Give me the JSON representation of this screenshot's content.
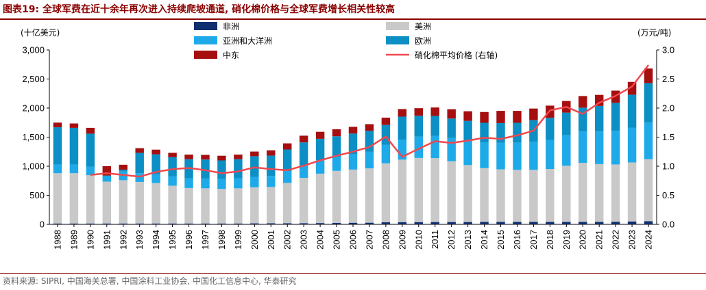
{
  "header": {
    "figure_label": "图表19:",
    "title_text": "全球军费在近十余年再次进入持续爬坡通道, 硝化棉价格与全球军费增长相关性较高"
  },
  "footer": {
    "source": "资料来源: SIPRI, 中国海关总署, 中国涂料工业协会, 中国化工信息中心, 华泰研究"
  },
  "colors": {
    "africa": "#0f2f6e",
    "americas": "#c9c9c9",
    "asia_oceania": "#1eaae8",
    "europe": "#0b8fc4",
    "middle_east": "#a50f0f",
    "price": "#f0484e",
    "accent": "#8b0000"
  },
  "chart_data": {
    "type": "bar",
    "stacked": true,
    "categories": [
      "1988",
      "1989",
      "1990",
      "1991",
      "1992",
      "1993",
      "1994",
      "1995",
      "1996",
      "1997",
      "1998",
      "1999",
      "2000",
      "2001",
      "2002",
      "2003",
      "2004",
      "2005",
      "2006",
      "2007",
      "2008",
      "2009",
      "2010",
      "2011",
      "2012",
      "2013",
      "2014",
      "2015",
      "2016",
      "2017",
      "2018",
      "2019",
      "2020",
      "2021",
      "2022",
      "2023",
      "2024"
    ],
    "ylabel": "(十亿美元)",
    "y2label": "(万元/吨)",
    "ylim": [
      0,
      3000
    ],
    "y2lim": [
      0,
      3.0
    ],
    "yticks": [
      "0",
      "500",
      "1,000",
      "1,500",
      "2,000",
      "2,500",
      "3,000"
    ],
    "y2ticks": [
      "0.0",
      "0.5",
      "1.0",
      "1.5",
      "2.0",
      "2.5",
      "3.0"
    ],
    "legend_position": "top",
    "series": [
      {
        "name": "非洲",
        "key": "africa",
        "values": [
          15,
          15,
          15,
          15,
          15,
          15,
          15,
          15,
          15,
          15,
          15,
          15,
          17,
          18,
          18,
          20,
          22,
          25,
          27,
          28,
          35,
          38,
          38,
          40,
          40,
          40,
          42,
          42,
          42,
          42,
          42,
          42,
          42,
          42,
          45,
          50,
          55
        ]
      },
      {
        "name": "美洲",
        "key": "americas",
        "values": [
          865,
          865,
          830,
          720,
          745,
          715,
          695,
          650,
          610,
          605,
          595,
          605,
          620,
          625,
          695,
          780,
          850,
          895,
          915,
          935,
          1015,
          1075,
          1105,
          1100,
          1045,
          980,
          925,
          905,
          895,
          895,
          910,
          965,
          1015,
          995,
          985,
          1015,
          1065
        ]
      },
      {
        "name": "亚洲和大洋洲",
        "key": "asia_oceania",
        "values": [
          150,
          150,
          145,
          95,
          150,
          150,
          150,
          160,
          165,
          165,
          170,
          170,
          180,
          190,
          200,
          210,
          230,
          245,
          265,
          285,
          320,
          345,
          365,
          380,
          400,
          420,
          440,
          455,
          470,
          485,
          500,
          525,
          540,
          560,
          580,
          595,
          630
        ]
      },
      {
        "name": "欧洲",
        "key": "europe",
        "values": [
          640,
          630,
          570,
          10,
          30,
          350,
          345,
          330,
          330,
          330,
          320,
          330,
          355,
          350,
          375,
          400,
          370,
          350,
          355,
          360,
          340,
          395,
          360,
          345,
          335,
          340,
          340,
          340,
          340,
          370,
          380,
          390,
          410,
          440,
          480,
          570,
          680
        ]
      },
      {
        "name": "中东",
        "key": "middle_east",
        "values": [
          80,
          75,
          100,
          160,
          85,
          80,
          80,
          75,
          80,
          80,
          80,
          80,
          80,
          90,
          105,
          115,
          120,
          120,
          115,
          115,
          125,
          130,
          130,
          145,
          160,
          165,
          185,
          210,
          205,
          200,
          210,
          200,
          200,
          190,
          210,
          220,
          250
        ]
      }
    ],
    "line_series": {
      "name": "硝化棉平均价格 (右轴)",
      "axis": "right",
      "values": [
        null,
        null,
        0.85,
        0.88,
        0.85,
        0.82,
        0.9,
        0.95,
        0.97,
        0.93,
        0.88,
        0.91,
        0.98,
        0.95,
        0.93,
        1.01,
        1.1,
        1.18,
        1.25,
        1.33,
        1.51,
        1.16,
        1.3,
        1.43,
        1.4,
        1.44,
        1.49,
        1.47,
        1.53,
        1.61,
        1.96,
        2.02,
        1.9,
        2.09,
        2.21,
        2.37,
        2.74
      ]
    }
  }
}
